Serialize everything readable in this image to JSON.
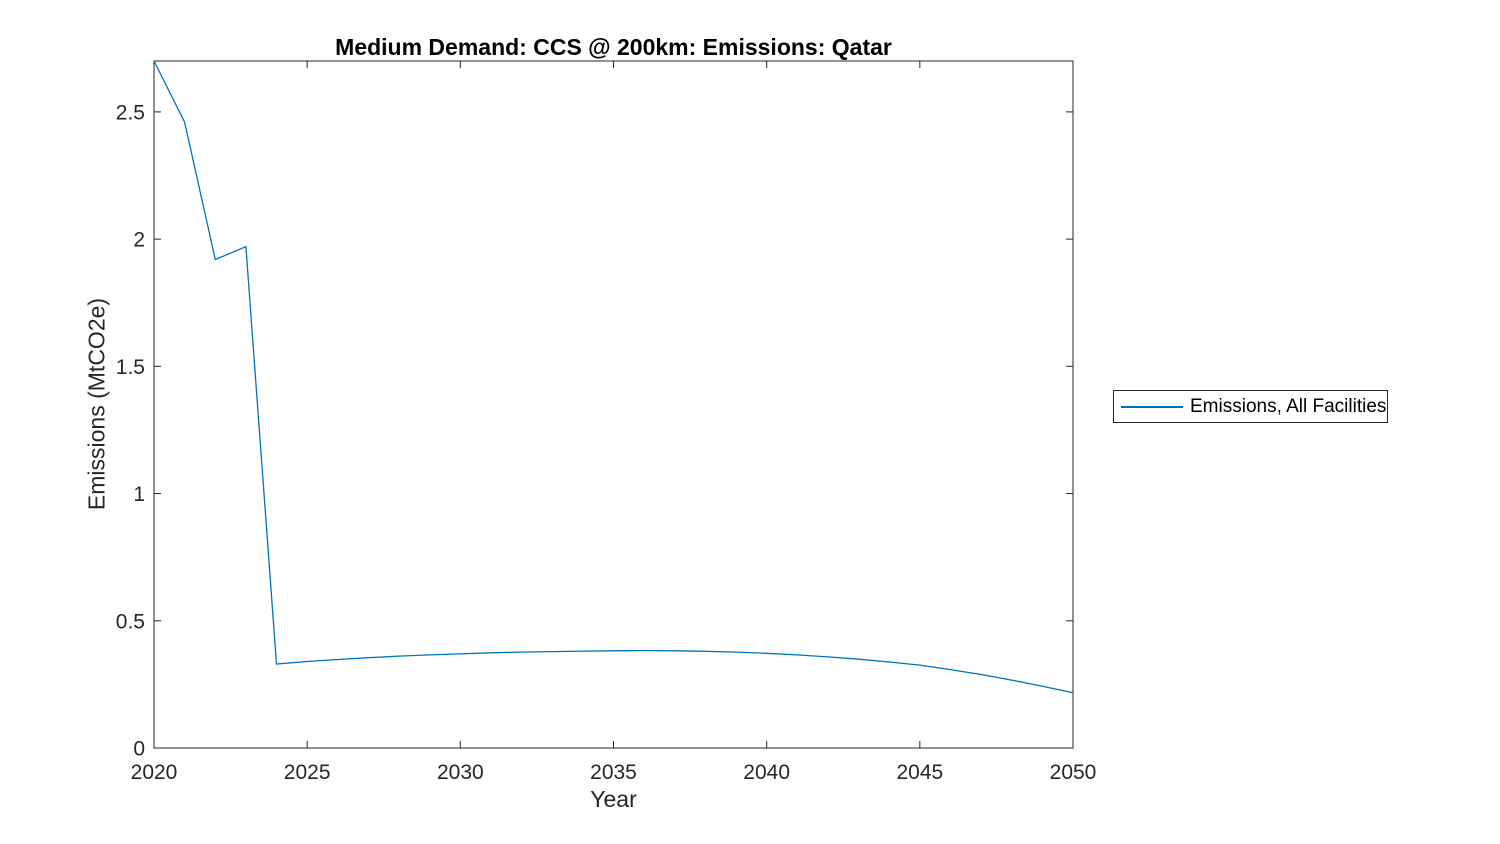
{
  "chart_data": {
    "type": "line",
    "title": "Medium Demand: CCS @ 200km: Emissions: Qatar",
    "xlabel": "Year",
    "ylabel": "Emissions (MtCO2e)",
    "x": [
      2020,
      2021,
      2022,
      2023,
      2024,
      2025,
      2026,
      2027,
      2028,
      2029,
      2030,
      2031,
      2032,
      2033,
      2034,
      2035,
      2036,
      2037,
      2038,
      2039,
      2040,
      2041,
      2042,
      2043,
      2044,
      2045,
      2046,
      2047,
      2048,
      2049,
      2050
    ],
    "series": [
      {
        "name": "Emissions, All Facilities",
        "color": "#0072BD",
        "values": [
          2.7,
          2.46,
          1.92,
          1.97,
          0.33,
          0.34,
          0.348,
          0.355,
          0.361,
          0.366,
          0.37,
          0.374,
          0.377,
          0.379,
          0.381,
          0.382,
          0.383,
          0.382,
          0.38,
          0.377,
          0.372,
          0.366,
          0.358,
          0.349,
          0.338,
          0.326,
          0.308,
          0.289,
          0.267,
          0.243,
          0.217
        ]
      }
    ],
    "xlim": [
      2020,
      2050
    ],
    "ylim": [
      0,
      2.7
    ],
    "xticks": [
      2020,
      2025,
      2030,
      2035,
      2040,
      2045,
      2050
    ],
    "yticks": [
      0,
      0.5,
      1,
      1.5,
      2,
      2.5
    ],
    "grid": false,
    "legend_position": "right-outside",
    "axis_color": "#262626",
    "background_color": "#ffffff"
  }
}
